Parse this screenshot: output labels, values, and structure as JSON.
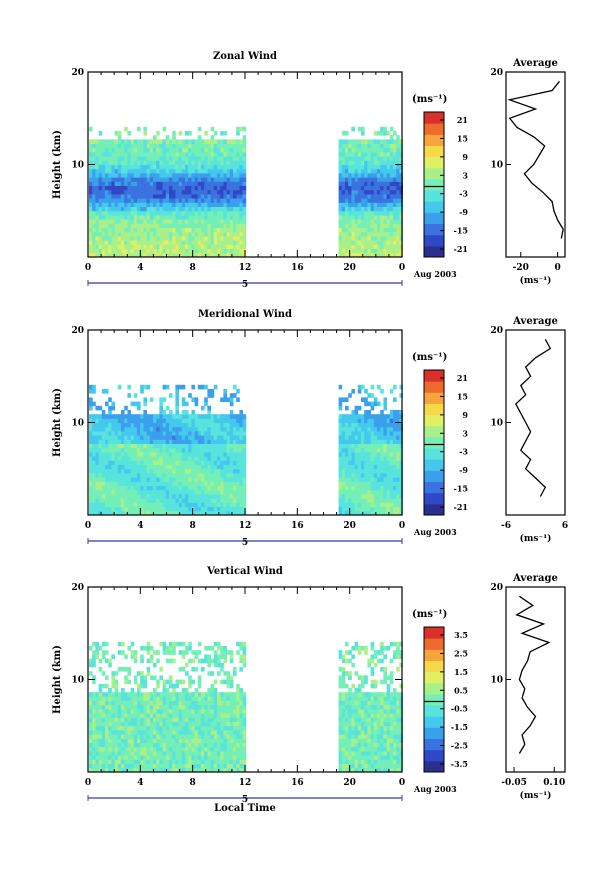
{
  "colors": {
    "jet": [
      "#2a2f8f",
      "#2f49c6",
      "#3a72e0",
      "#3aa0ec",
      "#44c8ee",
      "#58e3dc",
      "#74efb8",
      "#a9f08a",
      "#dff065",
      "#f6d94a",
      "#f7a43a",
      "#ee6a2d",
      "#d9302a"
    ],
    "axis": "#000000",
    "time_marker": "#3a3aa0",
    "profile_line": "#000000"
  },
  "chart_data": [
    {
      "type": "heatmap",
      "title": "Zonal Wind",
      "ylabel": "Height (km)",
      "ylim": [
        0,
        20
      ],
      "yticks": [
        "10",
        "20"
      ],
      "xlim": [
        0,
        24
      ],
      "xticks": [
        "0",
        "4",
        "8",
        "12",
        "16",
        "20",
        "0"
      ],
      "day_label": "5",
      "month_label": "Aug 2003",
      "data_gap_hours": [
        12,
        19
      ],
      "colorbar": {
        "unit": "(ms⁻¹)",
        "ticks": [
          "21",
          "15",
          "9",
          "3",
          "-3",
          "-9",
          "-15",
          "-21"
        ],
        "range": [
          -24,
          24
        ]
      },
      "profile": {
        "title": "Average",
        "yticks": [
          "10",
          "20"
        ],
        "xticks": [
          "-20",
          "0"
        ],
        "xlabel": "(ms⁻¹)",
        "xlim": [
          -28,
          4
        ],
        "height_km": [
          2,
          3,
          4,
          5,
          6,
          7,
          8,
          9,
          10,
          11,
          12,
          13,
          14,
          15,
          16,
          17,
          18,
          19
        ],
        "values": [
          2,
          3,
          0,
          -2,
          -3,
          -8,
          -14,
          -18,
          -13,
          -10,
          -7,
          -13,
          -22,
          -26,
          -12,
          -26,
          -3,
          1
        ]
      }
    },
    {
      "type": "heatmap",
      "title": "Meridional Wind",
      "ylabel": "Height (km)",
      "ylim": [
        0,
        20
      ],
      "yticks": [
        "10",
        "20"
      ],
      "xlim": [
        0,
        24
      ],
      "xticks": [
        "0",
        "4",
        "8",
        "12",
        "16",
        "20",
        "0"
      ],
      "day_label": "5",
      "month_label": "Aug 2003",
      "data_gap_hours": [
        12,
        19
      ],
      "colorbar": {
        "unit": "(ms⁻¹)",
        "ticks": [
          "21",
          "15",
          "9",
          "3",
          "-3",
          "-9",
          "-15",
          "-21"
        ],
        "range": [
          -24,
          24
        ]
      },
      "profile": {
        "title": "Average",
        "yticks": [
          "10",
          "20"
        ],
        "xticks": [
          "-6",
          "6"
        ],
        "xlabel": "(ms⁻¹)",
        "xlim": [
          -6,
          6
        ],
        "height_km": [
          2,
          3,
          4,
          5,
          6,
          7,
          8,
          9,
          10,
          11,
          12,
          13,
          14,
          15,
          16,
          17,
          18,
          19
        ],
        "values": [
          1,
          2,
          0,
          -2,
          -1,
          -3,
          -2,
          -1,
          -2,
          -3,
          -4,
          -2,
          -3,
          -1,
          -2,
          0,
          3,
          2
        ]
      }
    },
    {
      "type": "heatmap",
      "title": "Vertical Wind",
      "ylabel": "Height (km)",
      "xlabel": "Local Time",
      "ylim": [
        0,
        20
      ],
      "yticks": [
        "10",
        "20"
      ],
      "xlim": [
        0,
        24
      ],
      "xticks": [
        "0",
        "4",
        "8",
        "12",
        "16",
        "20",
        "0"
      ],
      "day_label": "5",
      "month_label": "Aug 2003",
      "data_gap_hours": [
        12,
        19
      ],
      "colorbar": {
        "unit": "(ms⁻¹)",
        "ticks": [
          "3.5",
          "2.5",
          "1.5",
          "0.5",
          "-0.5",
          "-1.5",
          "-2.5",
          "-3.5"
        ],
        "range": [
          -4,
          4
        ]
      },
      "profile": {
        "title": "Average",
        "yticks": [
          "10",
          "20"
        ],
        "xticks": [
          "-0.05",
          "0.10"
        ],
        "xlabel": "(ms⁻¹)",
        "xlim": [
          -0.08,
          0.14
        ],
        "height_km": [
          2,
          3,
          4,
          5,
          6,
          7,
          8,
          9,
          10,
          11,
          12,
          13,
          14,
          15,
          16,
          17,
          18,
          19
        ],
        "values": [
          -0.03,
          -0.01,
          -0.02,
          0.01,
          0.03,
          0.0,
          -0.02,
          -0.01,
          -0.03,
          -0.02,
          0.0,
          0.01,
          0.08,
          -0.02,
          0.06,
          -0.04,
          0.02,
          -0.03
        ]
      }
    }
  ]
}
